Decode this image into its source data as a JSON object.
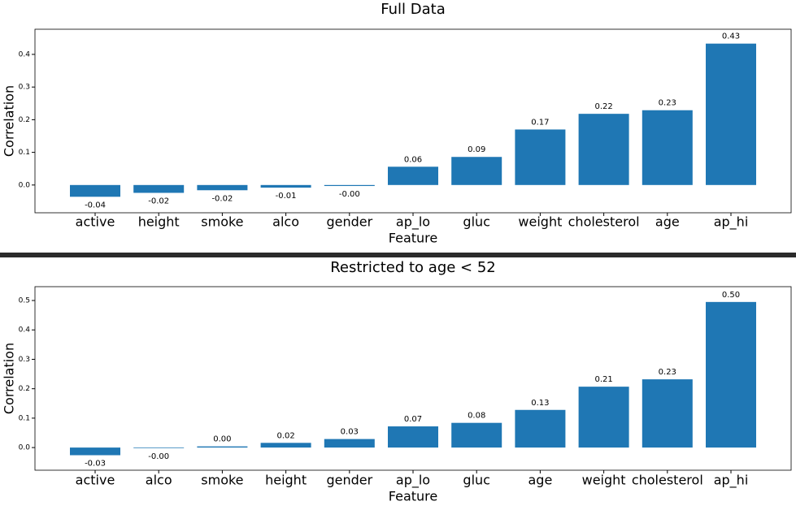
{
  "chart_data": [
    {
      "type": "bar",
      "title": "Full Data",
      "xlabel": "Feature",
      "ylabel": "Correlation",
      "categories": [
        "active",
        "height",
        "smoke",
        "alco",
        "gender",
        "ap_lo",
        "gluc",
        "weight",
        "cholesterol",
        "age",
        "ap_hi"
      ],
      "values": [
        -0.036,
        -0.024,
        -0.016,
        -0.008,
        -0.003,
        0.056,
        0.086,
        0.17,
        0.218,
        0.229,
        0.433
      ],
      "value_labels": [
        "-0.04",
        "-0.02",
        "-0.02",
        "-0.01",
        "-0.00",
        "0.06",
        "0.09",
        "0.17",
        "0.22",
        "0.23",
        "0.43"
      ],
      "color": "#1f77b4",
      "ylim": [
        -0.085,
        0.477
      ],
      "yticks": [
        {
          "value": 0,
          "label": "0.0"
        },
        {
          "value": 0.1,
          "label": "0.1"
        },
        {
          "value": 0.2,
          "label": "0.2"
        },
        {
          "value": 0.3,
          "label": "0.3"
        },
        {
          "value": 0.4,
          "label": "0.4"
        }
      ]
    },
    {
      "type": "bar",
      "title": "Restricted to age < 52",
      "xlabel": "Feature",
      "ylabel": "Correlation",
      "categories": [
        "active",
        "alco",
        "smoke",
        "height",
        "gender",
        "ap_lo",
        "gluc",
        "age",
        "weight",
        "cholesterol",
        "ap_hi"
      ],
      "values": [
        -0.026,
        -0.002,
        0.004,
        0.016,
        0.029,
        0.072,
        0.084,
        0.128,
        0.207,
        0.232,
        0.495
      ],
      "value_labels": [
        "-0.03",
        "-0.00",
        "0.00",
        "0.02",
        "0.03",
        "0.07",
        "0.08",
        "0.13",
        "0.21",
        "0.23",
        "0.50"
      ],
      "color": "#1f77b4",
      "ylim": [
        -0.077,
        0.547
      ],
      "yticks": [
        {
          "value": 0,
          "label": "0.0"
        },
        {
          "value": 0.1,
          "label": "0.1"
        },
        {
          "value": 0.2,
          "label": "0.2"
        },
        {
          "value": 0.3,
          "label": "0.3"
        },
        {
          "value": 0.4,
          "label": "0.4"
        },
        {
          "value": 0.5,
          "label": "0.5"
        }
      ]
    }
  ]
}
